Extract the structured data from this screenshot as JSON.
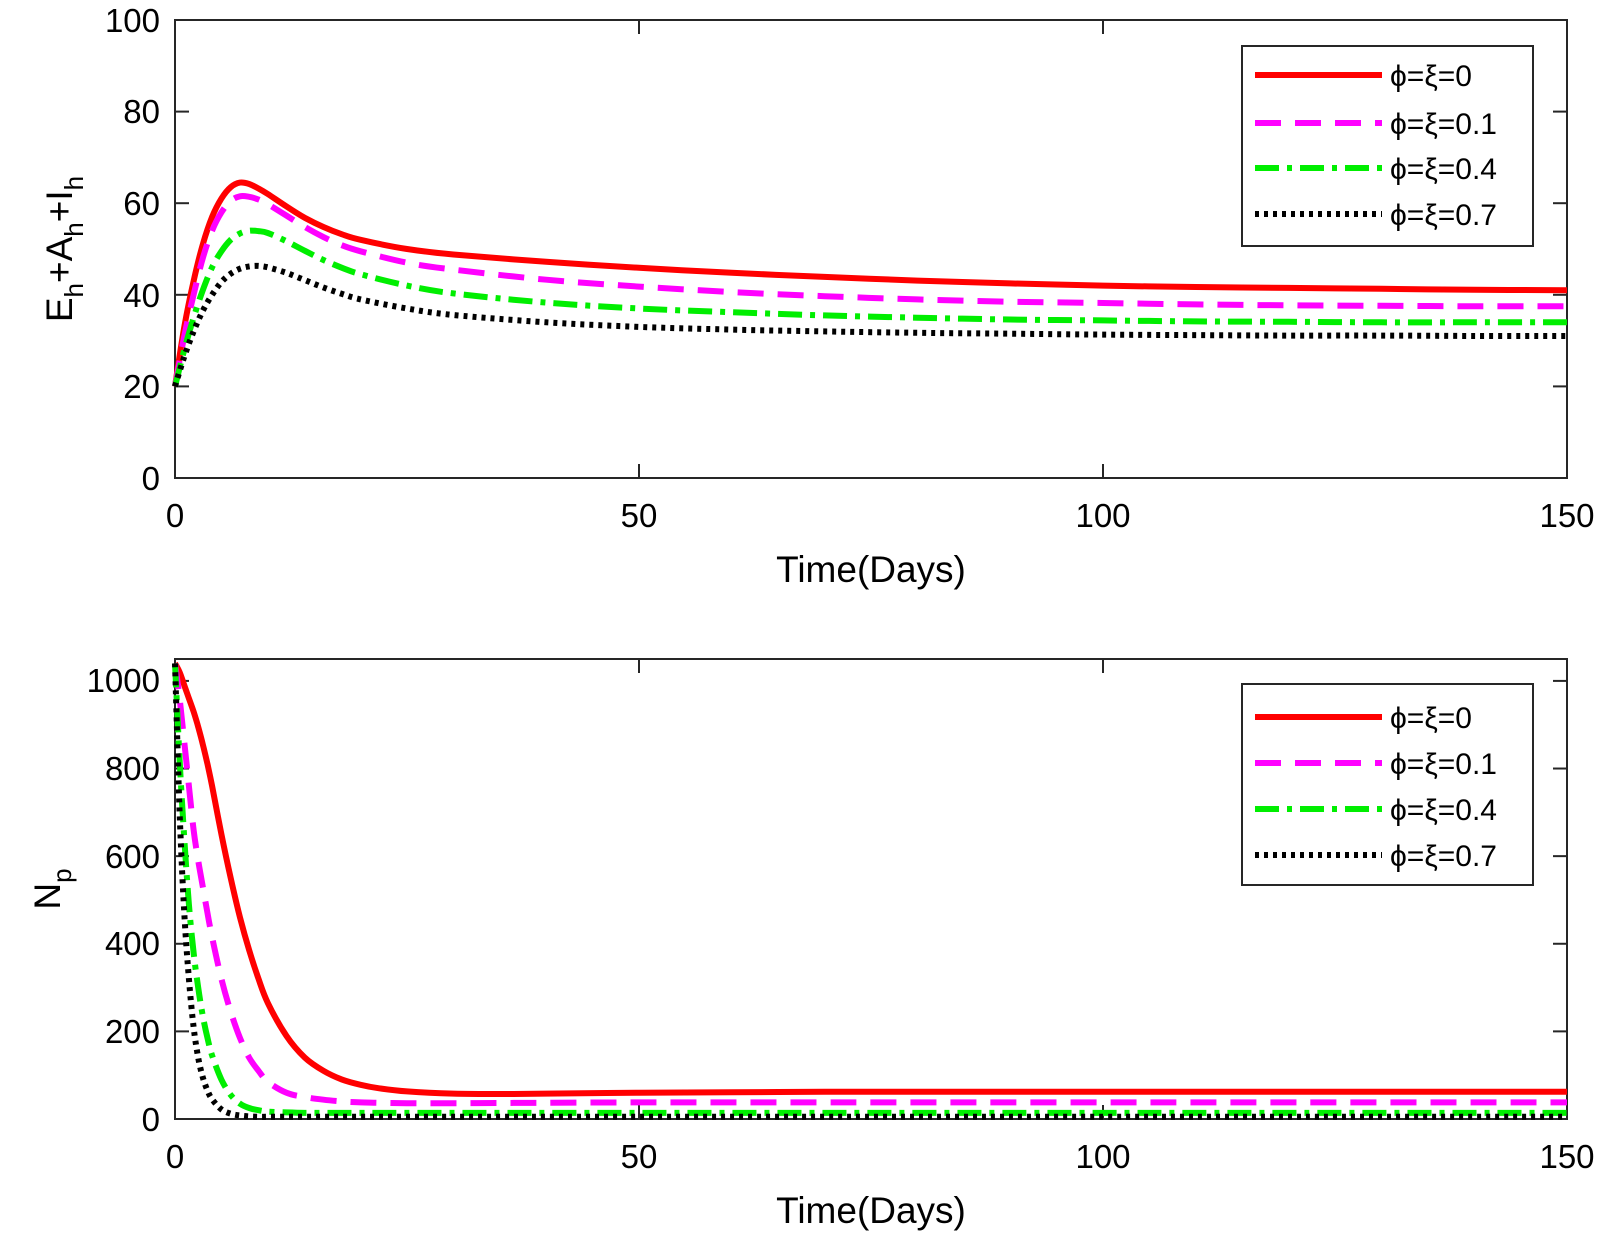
{
  "chart_data": [
    {
      "type": "line",
      "xlabel": "Time(Days)",
      "ylabel": {
        "base": "E",
        "sub": "h",
        "parts": [
          {
            "text": "E",
            "sub": "h"
          },
          {
            "text": "+A",
            "sub": "h"
          },
          {
            "text": "+I",
            "sub": "h"
          }
        ]
      },
      "xlim": [
        0,
        150
      ],
      "ylim": [
        0,
        100
      ],
      "xticks": [
        0,
        50,
        100,
        150
      ],
      "yticks": [
        0,
        20,
        40,
        60,
        80,
        100
      ],
      "legend_position": "top-right",
      "x": [
        0,
        1,
        2,
        3,
        4,
        5,
        6,
        7,
        8,
        9,
        10,
        12,
        14,
        16,
        18,
        20,
        25,
        30,
        40,
        50,
        60,
        70,
        80,
        90,
        100,
        110,
        120,
        130,
        140,
        150
      ],
      "series": [
        {
          "name": "ϕ=ξ=0",
          "color": "#ff0000",
          "style": "solid",
          "values": [
            20,
            33,
            43,
            51,
            57,
            61,
            63.5,
            64.5,
            64.2,
            63.2,
            62,
            59.3,
            56.8,
            54.8,
            53.2,
            52,
            50,
            48.8,
            47.2,
            45.9,
            44.8,
            43.9,
            43.1,
            42.5,
            42,
            41.7,
            41.5,
            41.3,
            41.1,
            41
          ]
        },
        {
          "name": "ϕ=ξ=0.1",
          "color": "#ff00ff",
          "style": "dashed",
          "values": [
            20,
            31,
            40,
            48,
            54,
            58,
            60.5,
            61.5,
            61.4,
            60.8,
            59.8,
            57.3,
            54.8,
            52.6,
            50.8,
            49.5,
            47,
            45.5,
            43.3,
            41.8,
            40.6,
            39.7,
            39.0,
            38.5,
            38.2,
            37.9,
            37.7,
            37.6,
            37.5,
            37.5
          ]
        },
        {
          "name": "ϕ=ξ=0.4",
          "color": "#00ee00",
          "style": "dashdot",
          "values": [
            20,
            28,
            35,
            41,
            46,
            49.5,
            52,
            53.4,
            54,
            53.9,
            53.5,
            51.7,
            49.6,
            47.6,
            45.9,
            44.5,
            42,
            40.3,
            38.3,
            37,
            36.2,
            35.5,
            35.0,
            34.6,
            34.4,
            34.2,
            34.1,
            34.0,
            34.0,
            34
          ]
        },
        {
          "name": "ϕ=ξ=0.7",
          "color": "#000000",
          "style": "dotted",
          "values": [
            20,
            26.5,
            32,
            36.5,
            40,
            42.8,
            44.6,
            45.7,
            46.2,
            46.3,
            46,
            44.8,
            43.2,
            41.6,
            40.2,
            39,
            37,
            35.6,
            34,
            33,
            32.4,
            32,
            31.7,
            31.5,
            31.3,
            31.2,
            31.1,
            31.1,
            31.0,
            31
          ]
        }
      ]
    },
    {
      "type": "line",
      "xlabel": "Time(Days)",
      "ylabel": {
        "parts": [
          {
            "text": "N",
            "sub": "p"
          }
        ]
      },
      "xlim": [
        0,
        150
      ],
      "ylim": [
        0,
        1050
      ],
      "xticks": [
        0,
        50,
        100,
        150
      ],
      "yticks": [
        0,
        200,
        400,
        600,
        800,
        1000
      ],
      "legend_position": "top-right",
      "x": [
        0,
        0.5,
        1,
        1.5,
        2,
        2.5,
        3,
        3.5,
        4,
        5,
        6,
        7,
        8,
        9,
        10,
        12,
        14,
        16,
        18,
        20,
        22,
        25,
        30,
        35,
        40,
        50,
        60,
        70,
        80,
        100,
        120,
        150
      ],
      "series": [
        {
          "name": "ϕ=ξ=0",
          "color": "#ff0000",
          "style": "solid",
          "values": [
            1040,
            1020,
            990,
            960,
            930,
            895,
            855,
            810,
            760,
            650,
            550,
            460,
            385,
            320,
            265,
            190,
            140,
            110,
            90,
            78,
            70,
            63,
            58,
            57,
            58,
            60,
            61,
            62,
            62,
            62,
            62,
            62
          ]
        },
        {
          "name": "ϕ=ξ=0.1",
          "color": "#ff00ff",
          "style": "dashed",
          "values": [
            1040,
            960,
            860,
            760,
            660,
            590,
            530,
            470,
            415,
            320,
            245,
            185,
            140,
            110,
            85,
            60,
            50,
            44,
            40,
            38,
            37,
            36,
            36,
            36.5,
            37,
            38,
            38,
            38,
            38,
            38,
            38,
            38
          ]
        },
        {
          "name": "ϕ=ξ=0.4",
          "color": "#00ee00",
          "style": "dashdot",
          "values": [
            1040,
            820,
            640,
            490,
            380,
            300,
            235,
            185,
            145,
            90,
            55,
            35,
            25,
            20,
            17,
            15,
            14,
            14,
            14,
            14,
            14,
            14,
            14,
            14,
            14,
            14,
            14,
            14,
            14,
            14,
            14,
            14
          ]
        },
        {
          "name": "ϕ=ξ=0.7",
          "color": "#000000",
          "style": "dotted",
          "values": [
            1040,
            700,
            470,
            320,
            210,
            140,
            95,
            65,
            45,
            22,
            12,
            8,
            6,
            5,
            5,
            5,
            5,
            5,
            5,
            5,
            5,
            5,
            5,
            5,
            5,
            5,
            5,
            5,
            5,
            5,
            5,
            5
          ]
        }
      ]
    }
  ]
}
